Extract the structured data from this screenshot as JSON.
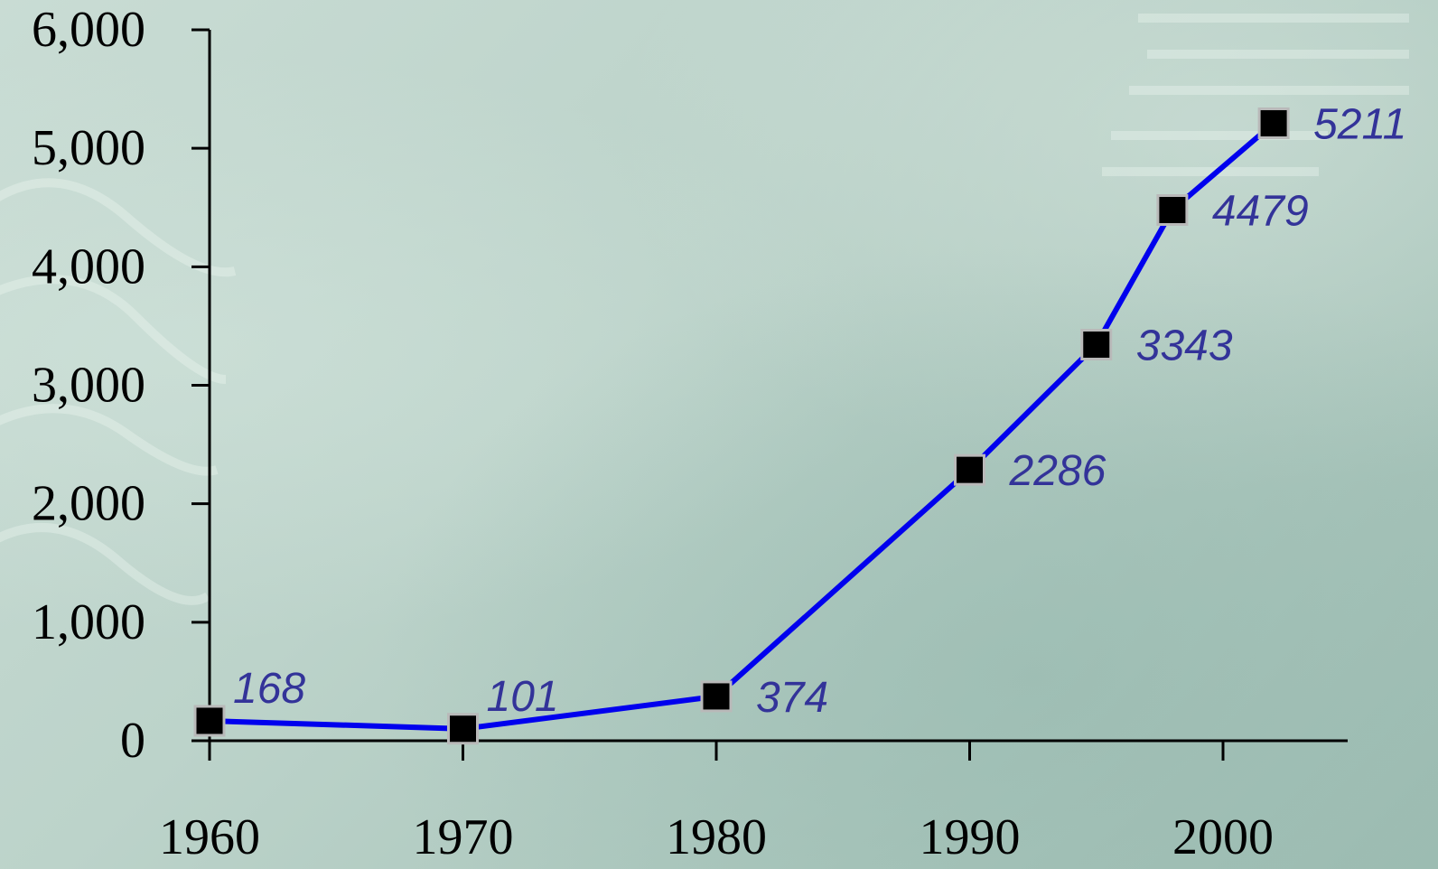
{
  "chart_data": {
    "type": "line",
    "title": "",
    "xlabel": "",
    "ylabel": "",
    "x": [
      1960,
      1970,
      1980,
      1990,
      1995,
      1998,
      2002
    ],
    "series": [
      {
        "values": [
          168,
          101,
          374,
          2286,
          3343,
          4479,
          5211
        ],
        "labels": [
          "168",
          "101",
          "374",
          "2286",
          "3343",
          "4479",
          "5211"
        ]
      }
    ],
    "xlim": [
      1960,
      2005
    ],
    "ylim": [
      0,
      6000
    ],
    "x_ticks": [
      1960,
      1970,
      1980,
      1990,
      2000
    ],
    "x_tick_labels": [
      "1960",
      "1970",
      "1980",
      "1990",
      "2000"
    ],
    "y_ticks": [
      0,
      1000,
      2000,
      3000,
      4000,
      5000,
      6000
    ],
    "y_tick_labels": [
      "0",
      "1,000",
      "2,000",
      "3,000",
      "4,000",
      "5,000",
      "6,000"
    ],
    "grid": false,
    "legend": "none",
    "colors": {
      "line": "#0000ee",
      "marker": "#000000",
      "marker_edge": "#b9b9b9",
      "data_label": "#333399",
      "axis": "#000000"
    }
  }
}
